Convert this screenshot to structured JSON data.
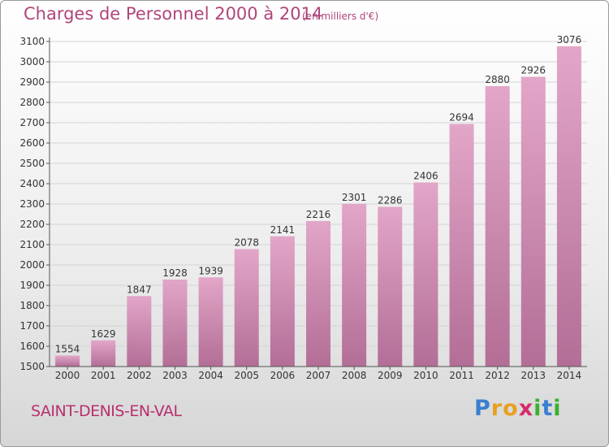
{
  "header": {
    "title": "Charges de Personnel 2000 à 2014",
    "subtitle": "(en milliers d'€)"
  },
  "footer": {
    "commune": "SAINT-DENIS-EN-VAL",
    "logo_letters": [
      {
        "char": "P",
        "color": "#3a7fd0"
      },
      {
        "char": "r",
        "color": "#e8a020"
      },
      {
        "char": "o",
        "color": "#e8a020"
      },
      {
        "char": "x",
        "color": "#d92a6a"
      },
      {
        "char": "i",
        "color": "#3ab030"
      },
      {
        "char": "t",
        "color": "#3a7fd0"
      },
      {
        "char": "i",
        "color": "#3ab030"
      }
    ]
  },
  "colors": {
    "bar_top": "#e2a6c8",
    "bar_bottom": "#b36e96",
    "axis": "#555555",
    "grid": "#d4d4d4"
  },
  "chart_data": {
    "type": "bar",
    "title": "Charges de Personnel 2000 à 2014",
    "subtitle": "(en milliers d'€)",
    "categories": [
      "2000",
      "2001",
      "2002",
      "2003",
      "2004",
      "2005",
      "2006",
      "2007",
      "2008",
      "2009",
      "2010",
      "2011",
      "2012",
      "2013",
      "2014"
    ],
    "values": [
      1554,
      1629,
      1847,
      1928,
      1939,
      2078,
      2141,
      2216,
      2301,
      2286,
      2406,
      2694,
      2880,
      2926,
      3076
    ],
    "ylim": [
      1500,
      3100
    ],
    "yticks": [
      1500,
      1600,
      1700,
      1800,
      1900,
      2000,
      2100,
      2200,
      2300,
      2400,
      2500,
      2600,
      2700,
      2800,
      2900,
      3000,
      3100
    ],
    "grid": true,
    "data_labels": true
  }
}
